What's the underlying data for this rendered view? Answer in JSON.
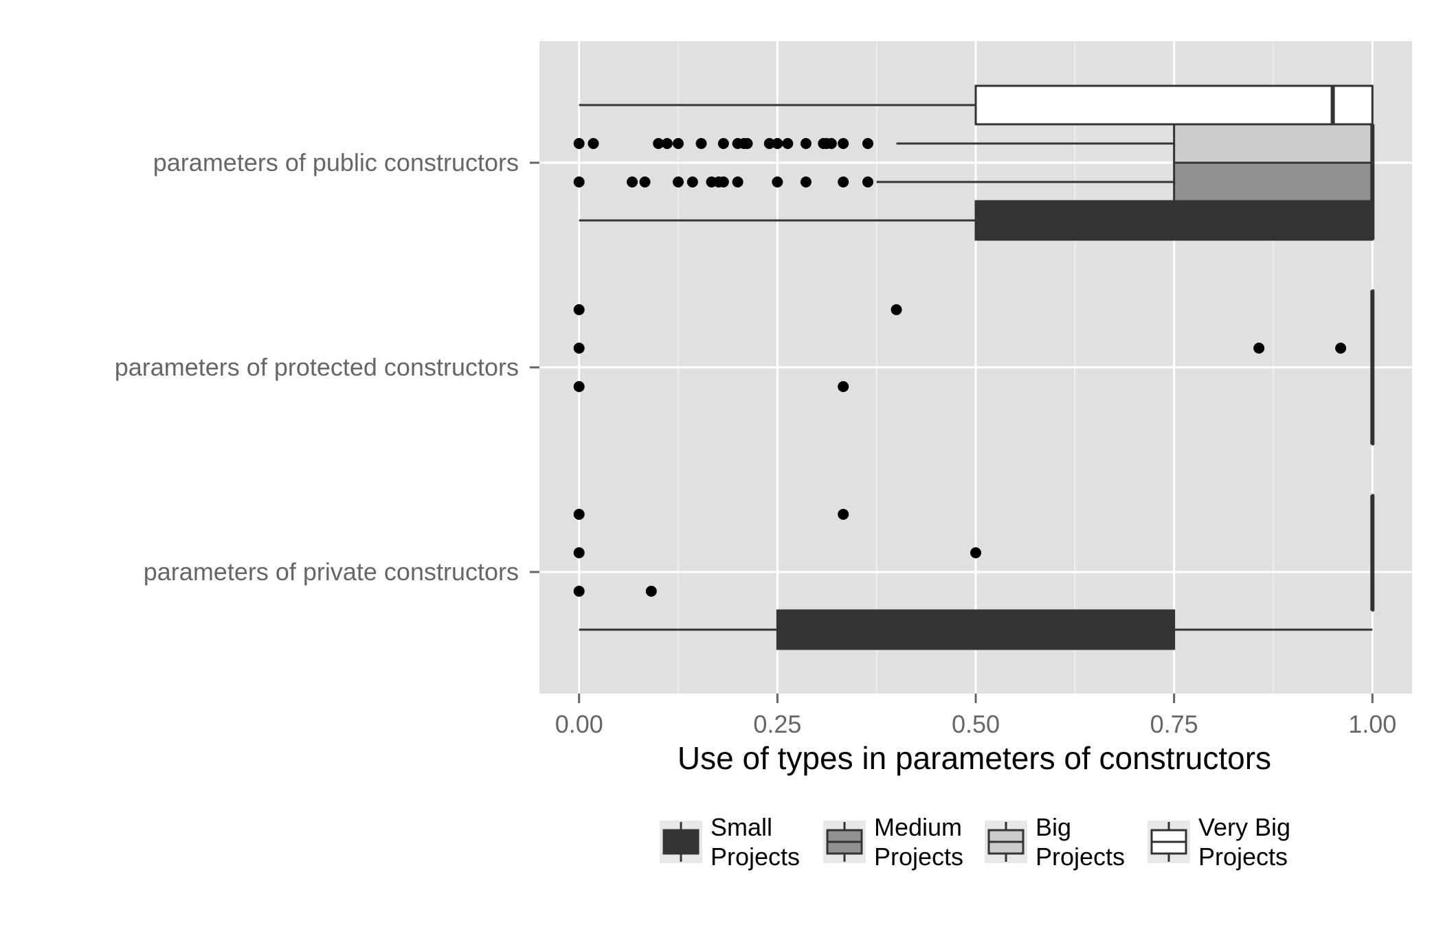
{
  "chart_data": {
    "type": "boxplot",
    "orientation": "horizontal",
    "xlabel": "Use of types in parameters of constructors",
    "ylabel": "",
    "xlim": [
      -0.05,
      1.05
    ],
    "x_ticks": [
      "0.00",
      "0.25",
      "0.50",
      "0.75",
      "1.00"
    ],
    "x_tick_values": [
      0,
      0.25,
      0.5,
      0.75,
      1
    ],
    "grid": true,
    "legend_position": "bottom",
    "categories": [
      "parameters of private constructors",
      "parameters of protected constructors",
      "parameters of public constructors"
    ],
    "series": [
      {
        "name": "Small Projects",
        "fill": "#333333",
        "boxes": [
          {
            "min": 0,
            "q1": 0.25,
            "median": 0.5,
            "q3": 0.75,
            "max": 1.0,
            "outliers": []
          },
          {
            "min": 1.0,
            "q1": 1.0,
            "median": 1.0,
            "q3": 1.0,
            "max": 1.0,
            "outliers": []
          },
          {
            "min": 0,
            "q1": 0.5,
            "median": 1.0,
            "q3": 1.0,
            "max": 1.0,
            "outliers": []
          }
        ]
      },
      {
        "name": "Medium Projects",
        "fill": "#909090",
        "boxes": [
          {
            "min": 1.0,
            "q1": 1.0,
            "median": 1.0,
            "q3": 1.0,
            "max": 1.0,
            "outliers": [
              0,
              0.091
            ]
          },
          {
            "min": 1.0,
            "q1": 1.0,
            "median": 1.0,
            "q3": 1.0,
            "max": 1.0,
            "outliers": [
              0,
              0.333
            ]
          },
          {
            "min": 0.375,
            "q1": 0.75,
            "median": 1.0,
            "q3": 1.0,
            "max": 1.0,
            "outliers": [
              0,
              0.067,
              0.083,
              0.125,
              0.143,
              0.167,
              0.176,
              0.182,
              0.2,
              0.25,
              0.286,
              0.333,
              0.364
            ]
          }
        ]
      },
      {
        "name": "Big Projects",
        "fill": "#cccccc",
        "boxes": [
          {
            "min": 1.0,
            "q1": 1.0,
            "median": 1.0,
            "q3": 1.0,
            "max": 1.0,
            "outliers": [
              0,
              0.5
            ]
          },
          {
            "min": 1.0,
            "q1": 1.0,
            "median": 1.0,
            "q3": 1.0,
            "max": 1.0,
            "outliers": [
              0,
              0.857,
              0.96
            ]
          },
          {
            "min": 0.4,
            "q1": 0.75,
            "median": 1.0,
            "q3": 1.0,
            "max": 1.0,
            "outliers": [
              0,
              0.018,
              0.1,
              0.111,
              0.125,
              0.154,
              0.182,
              0.2,
              0.208,
              0.212,
              0.24,
              0.25,
              0.263,
              0.286,
              0.308,
              0.312,
              0.318,
              0.333,
              0.364
            ]
          }
        ]
      },
      {
        "name": "Very Big Projects",
        "fill": "#ffffff",
        "boxes": [
          {
            "min": 1.0,
            "q1": 1.0,
            "median": 1.0,
            "q3": 1.0,
            "max": 1.0,
            "outliers": [
              0,
              0.333
            ]
          },
          {
            "min": 1.0,
            "q1": 1.0,
            "median": 1.0,
            "q3": 1.0,
            "max": 1.0,
            "outliers": [
              0,
              0.4
            ]
          },
          {
            "min": 0,
            "q1": 0.5,
            "median": 0.95,
            "q3": 1.0,
            "max": 1.0,
            "outliers": []
          }
        ]
      }
    ],
    "legend": [
      {
        "line1": "Small",
        "line2": "Projects"
      },
      {
        "line1": "Medium",
        "line2": "Projects"
      },
      {
        "line1": "Big",
        "line2": "Projects"
      },
      {
        "line1": "Very Big",
        "line2": "Projects"
      }
    ]
  }
}
